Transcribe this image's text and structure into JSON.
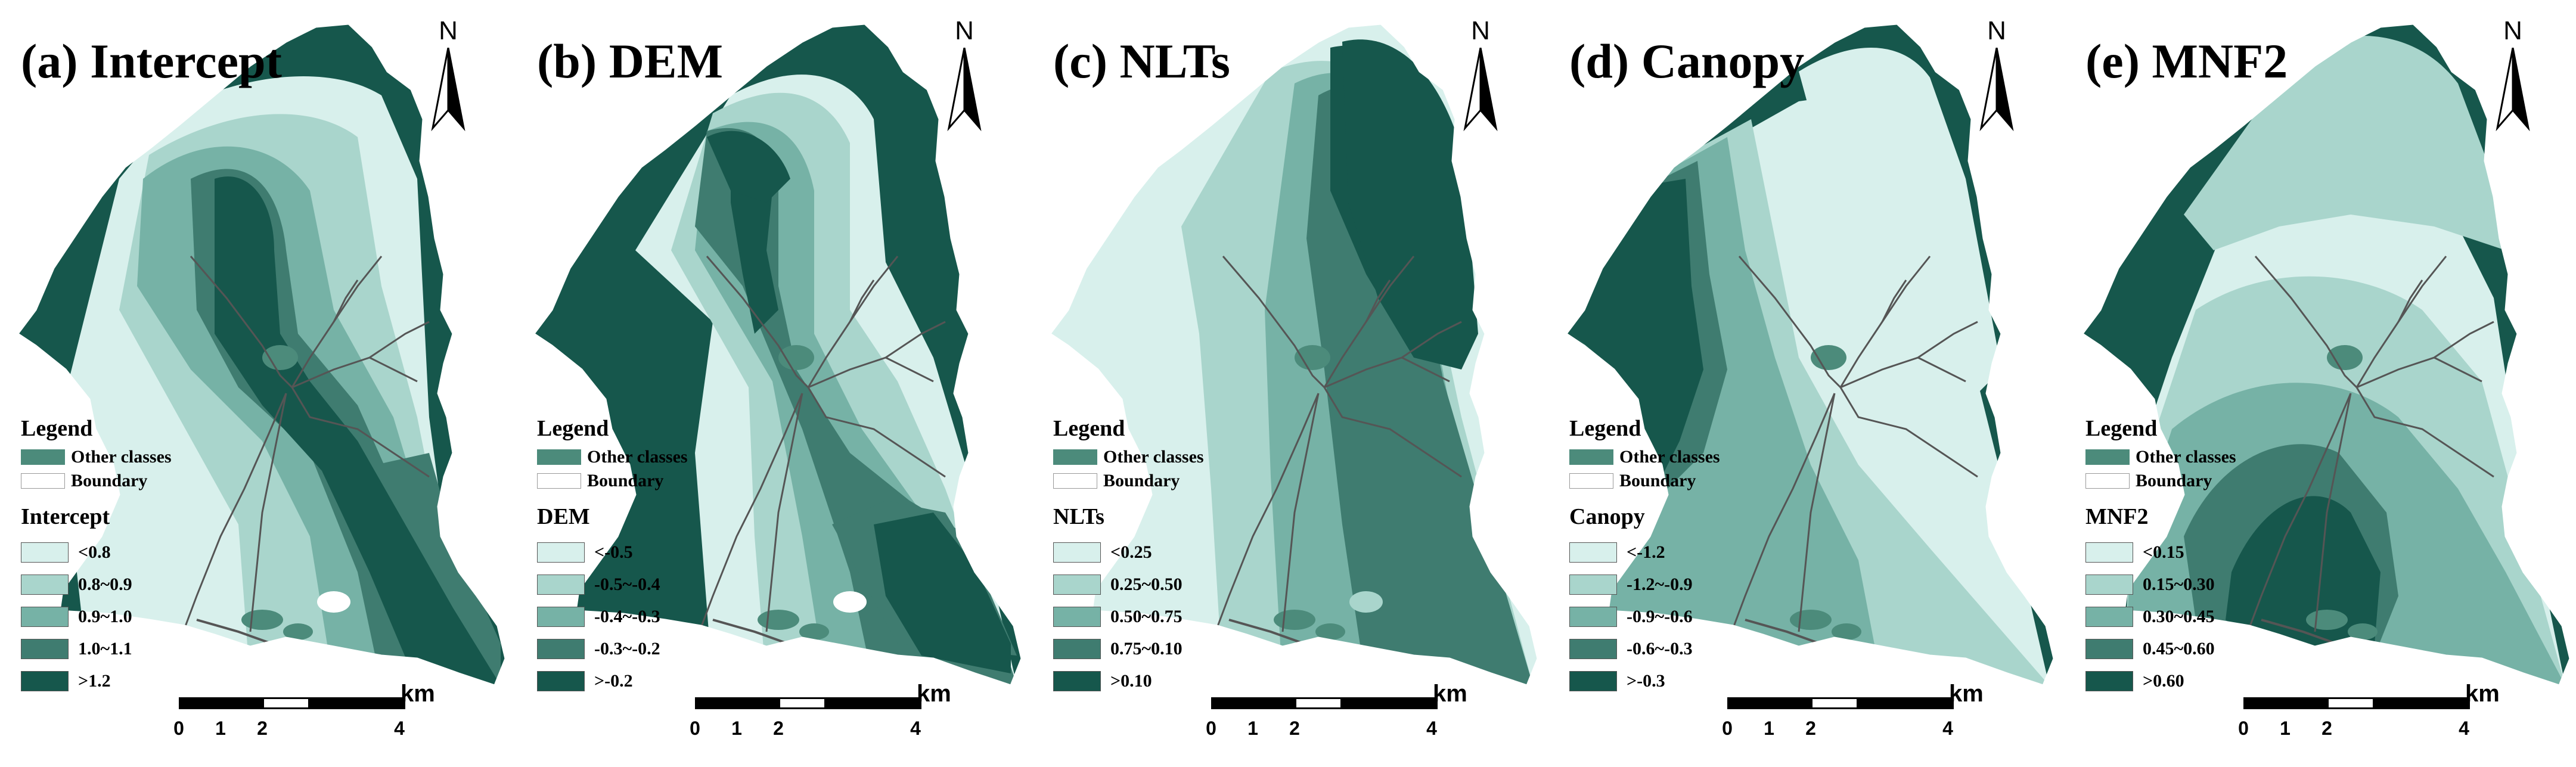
{
  "colors": {
    "class1": "#d8f0ec",
    "class2": "#a9d5cc",
    "class3": "#76b2a6",
    "class4": "#3f7c70",
    "class5": "#16574c",
    "other": "#4c8b7b",
    "boundary": "#ffffff",
    "stream": "#555555"
  },
  "legend_common": {
    "heading": "Legend",
    "other_classes": "Other classes",
    "boundary": "Boundary"
  },
  "scale": {
    "ticks": [
      "0",
      "1",
      "2",
      "4"
    ],
    "unit": "km"
  },
  "north_label": "N",
  "panels": [
    {
      "title": "(a) Intercept",
      "variable": "Intercept",
      "classes": [
        "<0.8",
        "0.8~0.9",
        "0.9~1.0",
        "1.0~1.1",
        ">1.2"
      ]
    },
    {
      "title": "(b) DEM",
      "variable": "DEM",
      "classes": [
        "<-0.5",
        "-0.5~-0.4",
        "-0.4~-0.3",
        "-0.3~-0.2",
        ">-0.2"
      ]
    },
    {
      "title": "(c) NLTs",
      "variable": "NLTs",
      "classes": [
        "<0.25",
        "0.25~0.50",
        "0.50~0.75",
        "0.75~0.10",
        ">0.10"
      ]
    },
    {
      "title": "(d) Canopy",
      "variable": "Canopy",
      "classes": [
        "<-1.2",
        "-1.2~-0.9",
        "-0.9~-0.6",
        "-0.6~-0.3",
        ">-0.3"
      ]
    },
    {
      "title": "(e) MNF2",
      "variable": "MNF2",
      "classes": [
        "<0.15",
        "0.15~0.30",
        "0.30~0.45",
        "0.45~0.60",
        ">0.60"
      ]
    }
  ]
}
